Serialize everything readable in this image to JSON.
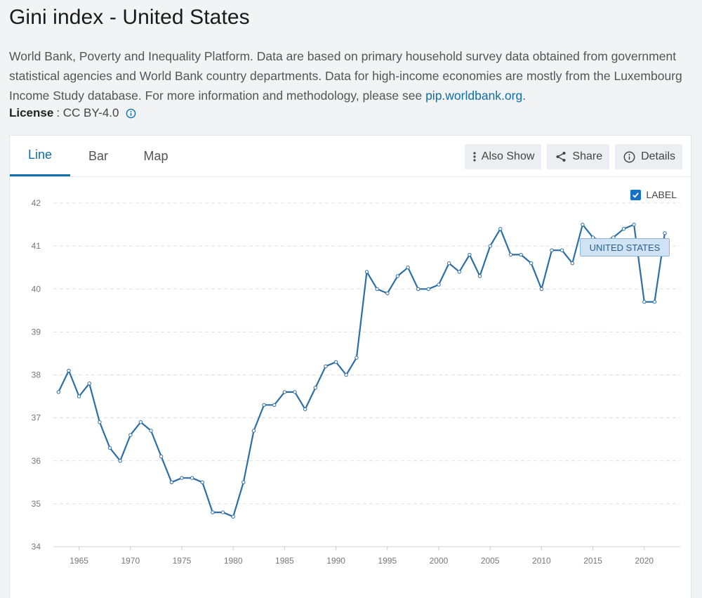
{
  "header": {
    "title": "Gini index - United States",
    "description": "World Bank, Poverty and Inequality Platform. Data are based on primary household survey data obtained from government statistical agencies and World Bank country departments. Data for high-income economies are mostly from the Luxembourg Income Study database. For more information and methodology, please see ",
    "link_text": "pip.worldbank.org",
    "description_end": ".",
    "license_label": "License",
    "license_value": ": CC BY-4.0"
  },
  "tabs": [
    {
      "label": "Line",
      "active": true
    },
    {
      "label": "Bar",
      "active": false
    },
    {
      "label": "Map",
      "active": false
    }
  ],
  "toolbar": {
    "also_show_label": "Also Show",
    "share_label": "Share",
    "details_label": "Details"
  },
  "label_toggle": {
    "label": "LABEL",
    "checked": true
  },
  "colors": {
    "line": "#2e6fa3",
    "accent": "#0f6fa8"
  },
  "chart_data": {
    "type": "line",
    "title": "",
    "xlabel": "",
    "ylabel": "",
    "ylim": [
      34,
      42
    ],
    "xlim": [
      1962.5,
      2023.5
    ],
    "yticks": [
      34,
      35,
      36,
      37,
      38,
      39,
      40,
      41,
      42
    ],
    "xticks": [
      1965,
      1970,
      1975,
      1980,
      1985,
      1990,
      1995,
      2000,
      2005,
      2010,
      2015,
      2020
    ],
    "grid": "horizontal-dashed",
    "series": [
      {
        "name": "UNITED STATES",
        "x": [
          1963,
          1964,
          1965,
          1966,
          1967,
          1968,
          1969,
          1970,
          1971,
          1972,
          1973,
          1974,
          1975,
          1976,
          1977,
          1978,
          1979,
          1980,
          1981,
          1982,
          1983,
          1984,
          1985,
          1986,
          1987,
          1988,
          1989,
          1990,
          1991,
          1992,
          1993,
          1994,
          1995,
          1996,
          1997,
          1998,
          1999,
          2000,
          2001,
          2002,
          2003,
          2004,
          2005,
          2006,
          2007,
          2008,
          2009,
          2010,
          2011,
          2012,
          2013,
          2014,
          2015,
          2016,
          2017,
          2018,
          2019,
          2020,
          2021,
          2022
        ],
        "values": [
          37.6,
          38.1,
          37.5,
          37.8,
          36.9,
          36.3,
          36.0,
          36.6,
          36.9,
          36.7,
          36.1,
          35.5,
          35.6,
          35.6,
          35.5,
          34.8,
          34.8,
          34.7,
          35.5,
          36.7,
          37.3,
          37.3,
          37.6,
          37.6,
          37.2,
          37.7,
          38.2,
          38.3,
          38.0,
          38.4,
          40.4,
          40.0,
          39.9,
          40.3,
          40.5,
          40.0,
          40.0,
          40.1,
          40.6,
          40.4,
          40.8,
          40.3,
          41.0,
          41.4,
          40.8,
          40.8,
          40.6,
          40.0,
          40.9,
          40.9,
          40.6,
          41.5,
          41.2,
          41.1,
          41.2,
          41.4,
          41.5,
          39.7,
          39.7,
          41.3
        ]
      }
    ]
  }
}
